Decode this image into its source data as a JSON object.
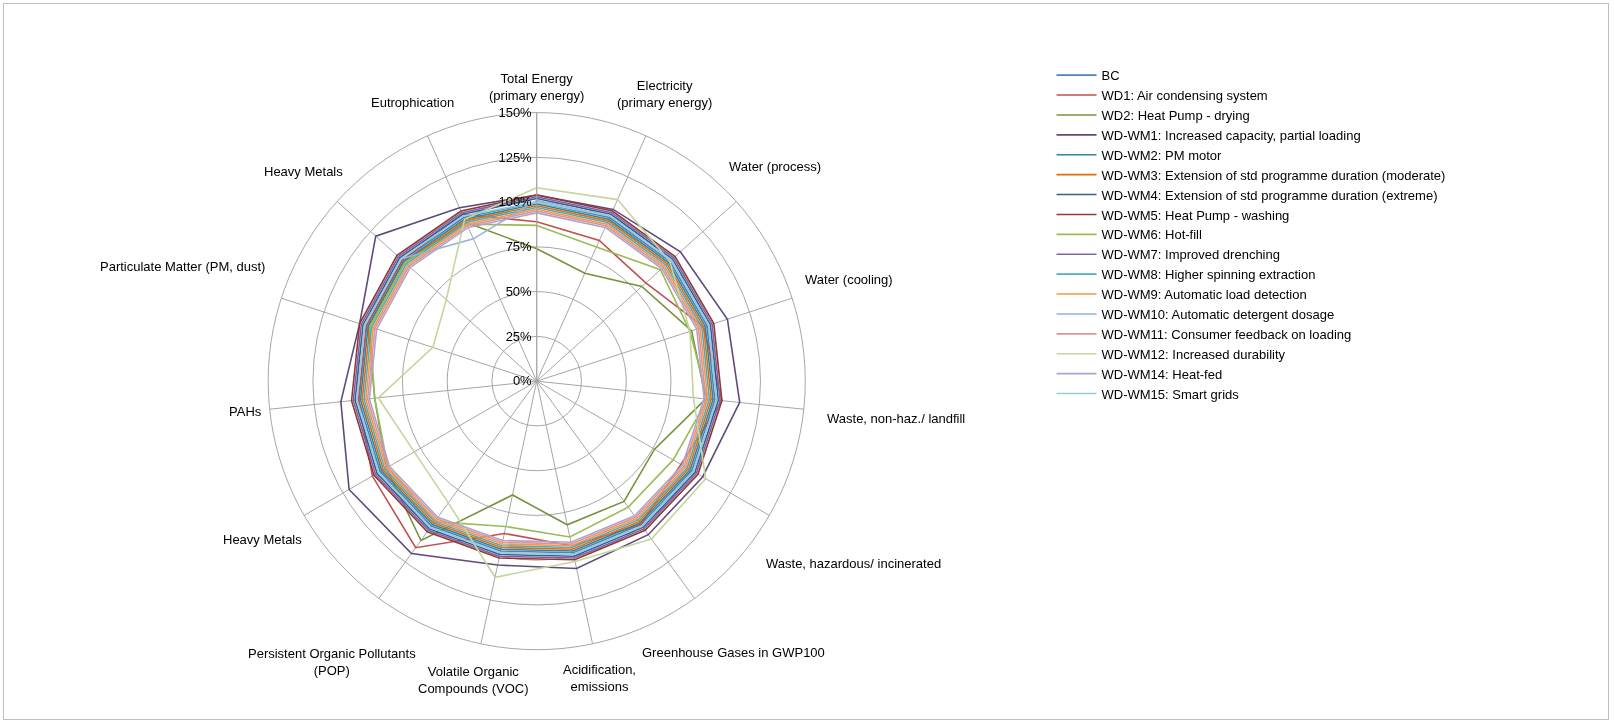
{
  "chart_data": {
    "type": "radar",
    "categories": [
      "Total Energy (primary energy)",
      "Electricity (primary energy)",
      "Water (process)",
      "Water (cooling)",
      "Waste, non-haz./ landfill",
      "Waste, hazardous/ incinerated",
      "Greenhouse Gases in GWP100",
      "Acidification, emissions",
      "Volatile Organic Compounds (VOC)",
      "Persistent Organic Pollutants (POP)",
      "Heavy Metals",
      "PAHs",
      "Particulate Matter (PM, dust)",
      "Heavy Metals",
      "Eutrophication"
    ],
    "ylim": [
      0,
      150
    ],
    "yticks": [
      {
        "value": 0,
        "label": "0%"
      },
      {
        "value": 25,
        "label": "25%"
      },
      {
        "value": 50,
        "label": "50%"
      },
      {
        "value": 75,
        "label": "75%"
      },
      {
        "value": 100,
        "label": "100%"
      },
      {
        "value": 125,
        "label": "125%"
      },
      {
        "value": 150,
        "label": "150%"
      }
    ],
    "grid": true,
    "legend": "right",
    "marker": "none",
    "line_style": "solid",
    "series": [
      {
        "name": "BC",
        "color": "#4f81bd",
        "values": [
          100,
          100,
          100,
          100,
          100,
          100,
          99,
          98,
          97,
          100,
          101,
          100,
          100,
          101,
          100
        ]
      },
      {
        "name": "WD1: Air condensing system",
        "color": "#c0504d",
        "values": [
          89,
          86,
          82,
          98,
          104,
          93,
          99,
          94,
          87,
          115,
          106,
          100,
          100,
          101,
          102
        ]
      },
      {
        "name": "WD2: Heat Pump - drying",
        "color": "#77933c",
        "values": [
          74,
          66,
          79,
          91,
          95,
          76,
          83,
          82,
          65,
          110,
          97,
          91,
          99,
          100,
          97
        ]
      },
      {
        "name": "WD-WM1: Increased capacity, partial loading",
        "color": "#604a7b",
        "values": [
          104,
          105,
          108,
          112,
          114,
          107,
          106,
          107,
          105,
          119,
          121,
          110,
          104,
          121,
          106
        ]
      },
      {
        "name": "WD-WM2: PM motor",
        "color": "#31859c",
        "values": [
          99,
          99,
          99,
          99,
          99,
          99,
          98,
          97,
          96,
          99,
          100,
          99,
          99,
          100,
          99
        ]
      },
      {
        "name": "WD-WM3: Extension of std programme duration (moderate)",
        "color": "#e46c0a",
        "values": [
          98,
          98,
          98,
          98,
          98,
          98,
          97,
          96,
          95,
          98,
          99,
          98,
          98,
          99,
          98
        ]
      },
      {
        "name": "WD-WM4: Extension of std programme duration (extreme)",
        "color": "#376092",
        "values": [
          102,
          102,
          102,
          102,
          102,
          102,
          101,
          100,
          99,
          102,
          103,
          102,
          102,
          103,
          102
        ]
      },
      {
        "name": "WD-WM5: Heat Pump - washing",
        "color": "#953735",
        "values": [
          104,
          104,
          104,
          104,
          104,
          104,
          103,
          102,
          101,
          104,
          105,
          104,
          104,
          105,
          104
        ]
      },
      {
        "name": "WD-WM6: Hot-fill",
        "color": "#9bbb59",
        "values": [
          87,
          82,
          93,
          90,
          96,
          88,
          87,
          89,
          83,
          97,
          96,
          91,
          98,
          99,
          96
        ]
      },
      {
        "name": "WD-WM7: Improved drenching",
        "color": "#8064a2",
        "values": [
          103,
          103,
          103,
          103,
          103,
          103,
          102,
          101,
          100,
          103,
          104,
          103,
          103,
          104,
          103
        ]
      },
      {
        "name": "WD-WM8: Higher spinning extraction",
        "color": "#4bacc6",
        "values": [
          97,
          97,
          97,
          97,
          97,
          97,
          96,
          95,
          94,
          97,
          98,
          97,
          97,
          98,
          97
        ]
      },
      {
        "name": "WD-WM9: Automatic load detection",
        "color": "#f79646",
        "values": [
          96,
          96,
          96,
          96,
          96,
          96,
          95,
          94,
          93,
          96,
          97,
          96,
          96,
          97,
          96
        ]
      },
      {
        "name": "WD-WM10: Automatic detergent dosage",
        "color": "#95b3d7",
        "values": [
          101,
          101,
          101,
          101,
          101,
          101,
          100,
          99,
          98,
          101,
          102,
          101,
          101,
          102,
          87
        ]
      },
      {
        "name": "WD-WM11: Consumer feedback on loading",
        "color": "#d99694",
        "values": [
          95,
          95,
          95,
          95,
          95,
          95,
          94,
          93,
          92,
          95,
          96,
          95,
          95,
          96,
          95
        ]
      },
      {
        "name": "WD-WM12: Increased durability",
        "color": "#c3d69b",
        "values": [
          108,
          111,
          100,
          90,
          88,
          109,
          109,
          103,
          112,
          84,
          79,
          89,
          61,
          68,
          99
        ]
      },
      {
        "name": "WD-WM14: Heat-fed",
        "color": "#b3a2c7",
        "values": [
          94,
          94,
          94,
          94,
          94,
          94,
          93,
          92,
          91,
          94,
          95,
          94,
          94,
          95,
          94
        ]
      },
      {
        "name": "WD-WM15: Smart grids",
        "color": "#93cddd",
        "values": [
          100,
          101,
          101,
          101,
          101,
          101,
          100,
          99,
          98,
          101,
          102,
          101,
          101,
          102,
          101
        ]
      }
    ]
  }
}
